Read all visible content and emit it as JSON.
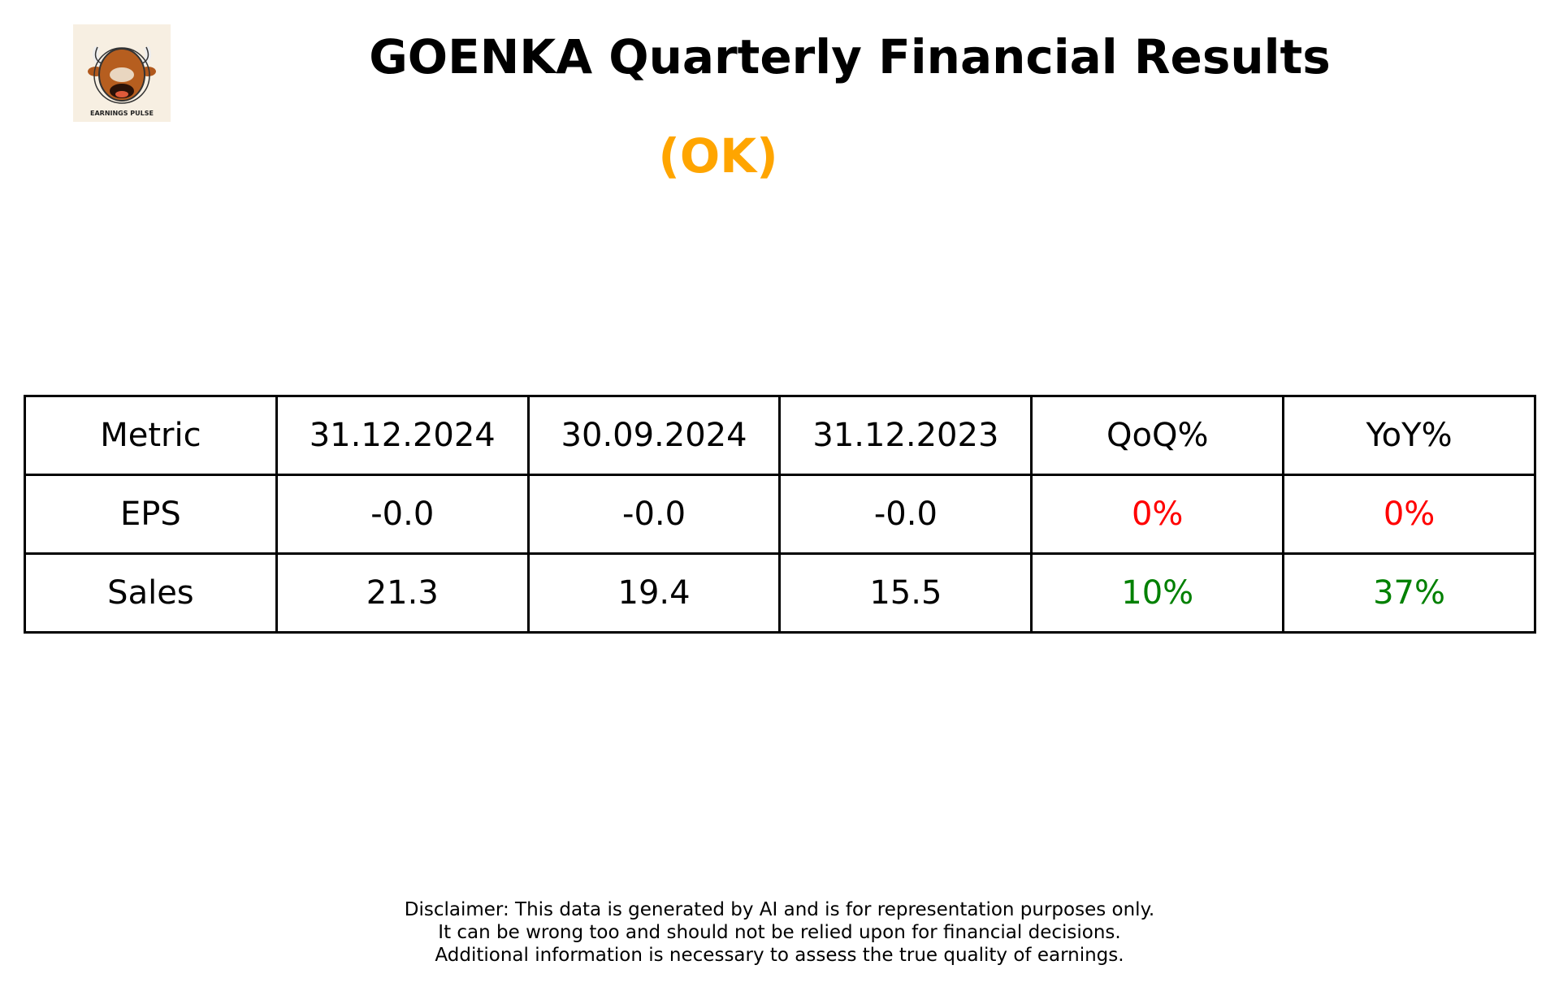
{
  "logo": {
    "text": "EARNINGS PULSE"
  },
  "header": {
    "title": "GOENKA Quarterly Financial Results",
    "rating": "(OK)",
    "rating_color": "#FFA500"
  },
  "table": {
    "headers": [
      "Metric",
      "31.12.2024",
      "30.09.2024",
      "31.12.2023",
      "QoQ%",
      "YoY%"
    ],
    "rows": [
      {
        "cells": [
          "EPS",
          "-0.0",
          "-0.0",
          "-0.0",
          "0%",
          "0%"
        ],
        "change_color": "#FF0000"
      },
      {
        "cells": [
          "Sales",
          "21.3",
          "19.4",
          "15.5",
          "10%",
          "37%"
        ],
        "change_color": "#008000"
      }
    ]
  },
  "disclaimer": [
    "Disclaimer: This data is generated by AI and is for representation purposes only.",
    "It can be wrong too and should not be relied upon for financial decisions.",
    "Additional information is necessary to assess the true quality of earnings."
  ]
}
